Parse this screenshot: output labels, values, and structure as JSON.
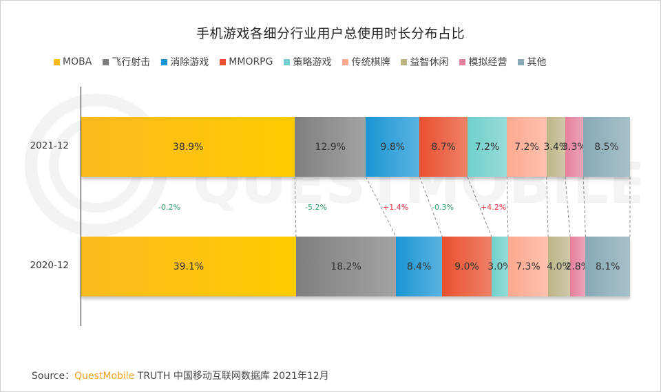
{
  "title": "手机游戏各细分行业用户总使用时长分布占比",
  "legend": [
    {
      "label": "MOBA",
      "color": "#fbb91e"
    },
    {
      "label": "飞行射击",
      "color": "#7f7f7f"
    },
    {
      "label": "消除游戏",
      "color": "#1a96d4"
    },
    {
      "label": "MMORPG",
      "color": "#e9502e"
    },
    {
      "label": "策略游戏",
      "color": "#6fcfcc"
    },
    {
      "label": "传统棋牌",
      "color": "#fda98f"
    },
    {
      "label": "益智休闲",
      "color": "#bdb486"
    },
    {
      "label": "模拟经营",
      "color": "#e5809c"
    },
    {
      "label": "其他",
      "color": "#86a9b6"
    }
  ],
  "rows": [
    {
      "label": "2021-12",
      "values_text": [
        "38.9%",
        "12.9%",
        "9.8%",
        "8.7%",
        "7.2%",
        "7.2%",
        "3.4%",
        "3.3%",
        "8.5%"
      ]
    },
    {
      "label": "2020-12",
      "values_text": [
        "39.1%",
        "18.2%",
        "8.4%",
        "9.0%",
        "3.0%",
        "7.3%",
        "4.0%",
        "2.8%",
        "8.1%"
      ]
    }
  ],
  "changes": [
    {
      "text": "-0.2%",
      "color": "#2ea36b"
    },
    {
      "text": "-5.2%",
      "color": "#2ea36b"
    },
    {
      "text": "+1.4%",
      "color": "#e8323c"
    },
    {
      "text": "-0.3%",
      "color": "#2ea36b"
    },
    {
      "text": "+4.2%",
      "color": "#e8323c"
    }
  ],
  "watermark": "QUESTMOBILE",
  "source": {
    "prefix": "Source：",
    "brand": "QuestMobile",
    "rest": "TRUTH 中国移动互联网数据库 2021年12月"
  },
  "chart_data": {
    "type": "bar",
    "orientation": "horizontal",
    "stacked": "100%",
    "title": "手机游戏各细分行业用户总使用时长分布占比",
    "categories": [
      "2021-12",
      "2020-12"
    ],
    "series": [
      {
        "name": "MOBA",
        "values": [
          38.9,
          39.1
        ],
        "color": "#fbb91e"
      },
      {
        "name": "飞行射击",
        "values": [
          12.9,
          18.2
        ],
        "color": "#7f7f7f"
      },
      {
        "name": "消除游戏",
        "values": [
          9.8,
          8.4
        ],
        "color": "#1a96d4"
      },
      {
        "name": "MMORPG",
        "values": [
          8.7,
          9.0
        ],
        "color": "#e9502e"
      },
      {
        "name": "策略游戏",
        "values": [
          7.2,
          3.0
        ],
        "color": "#6fcfcc"
      },
      {
        "name": "传统棋牌",
        "values": [
          7.2,
          7.3
        ],
        "color": "#fda98f"
      },
      {
        "name": "益智休闲",
        "values": [
          3.4,
          4.0
        ],
        "color": "#bdb486"
      },
      {
        "name": "模拟经营",
        "values": [
          3.3,
          2.8
        ],
        "color": "#e5809c"
      },
      {
        "name": "其他",
        "values": [
          8.5,
          8.1
        ],
        "color": "#86a9b6"
      }
    ],
    "annotations": [
      {
        "series": "MOBA",
        "text": "-0.2%"
      },
      {
        "series": "飞行射击",
        "text": "-5.2%"
      },
      {
        "series": "消除游戏",
        "text": "+1.4%"
      },
      {
        "series": "MMORPG",
        "text": "-0.3%"
      },
      {
        "series": "策略游戏",
        "text": "+4.2%"
      }
    ],
    "legend_position": "top",
    "grid": false,
    "xlabel": "",
    "ylabel": "",
    "source": "Source：QuestMobile TRUTH 中国移动互联网数据库 2021年12月"
  }
}
